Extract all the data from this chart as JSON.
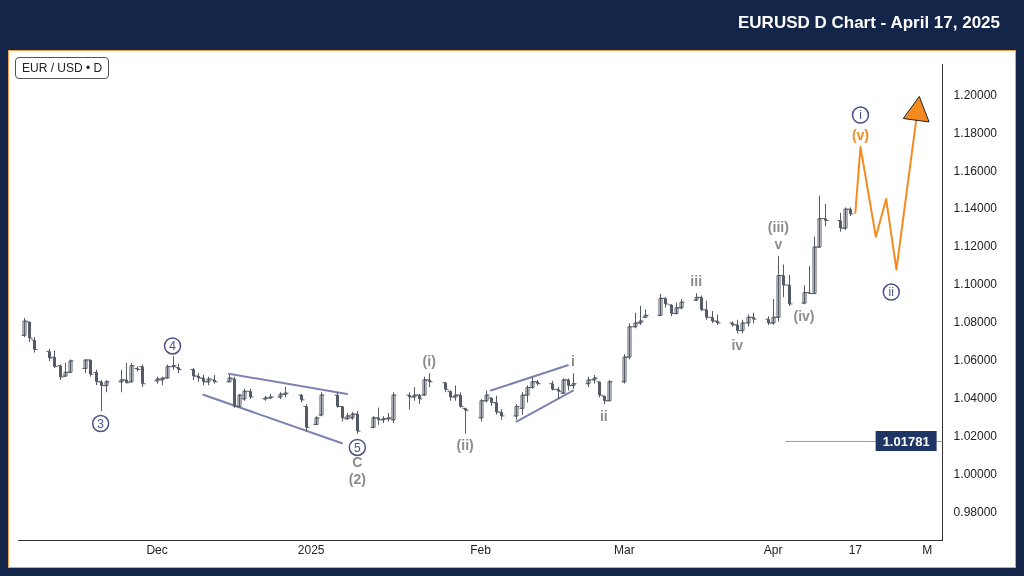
{
  "chart_data": {
    "type": "candlestick",
    "title": "EURUSD D Chart - April 17, 2025",
    "subtitle": "EUR / USD • D",
    "color": "#555b66",
    "x": [
      "2024-11-06",
      "2024-11-07",
      "2024-11-08",
      "2024-11-11",
      "2024-11-12",
      "2024-11-13",
      "2024-11-14",
      "2024-11-15",
      "2024-11-18",
      "2024-11-19",
      "2024-11-20",
      "2024-11-21",
      "2024-11-22",
      "2024-11-25",
      "2024-11-26",
      "2024-11-27",
      "2024-11-28",
      "2024-11-29",
      "2024-12-02",
      "2024-12-03",
      "2024-12-04",
      "2024-12-05",
      "2024-12-06",
      "2024-12-09",
      "2024-12-10",
      "2024-12-11",
      "2024-12-12",
      "2024-12-13",
      "2024-12-16",
      "2024-12-17",
      "2024-12-18",
      "2024-12-19",
      "2024-12-20",
      "2024-12-23",
      "2024-12-24",
      "2024-12-26",
      "2024-12-27",
      "2024-12-30",
      "2024-12-31",
      "2025-01-02",
      "2025-01-03",
      "2025-01-06",
      "2025-01-07",
      "2025-01-08",
      "2025-01-09",
      "2025-01-10",
      "2025-01-13",
      "2025-01-14",
      "2025-01-15",
      "2025-01-16",
      "2025-01-17",
      "2025-01-20",
      "2025-01-21",
      "2025-01-22",
      "2025-01-23",
      "2025-01-24",
      "2025-01-27",
      "2025-01-28",
      "2025-01-29",
      "2025-01-30",
      "2025-01-31",
      "2025-02-03",
      "2025-02-04",
      "2025-02-05",
      "2025-02-06",
      "2025-02-07",
      "2025-02-10",
      "2025-02-11",
      "2025-02-12",
      "2025-02-13",
      "2025-02-14",
      "2025-02-17",
      "2025-02-18",
      "2025-02-19",
      "2025-02-20",
      "2025-02-21",
      "2025-02-24",
      "2025-02-25",
      "2025-02-26",
      "2025-02-27",
      "2025-02-28",
      "2025-03-03",
      "2025-03-04",
      "2025-03-05",
      "2025-03-06",
      "2025-03-07",
      "2025-03-10",
      "2025-03-11",
      "2025-03-12",
      "2025-03-13",
      "2025-03-14",
      "2025-03-17",
      "2025-03-18",
      "2025-03-19",
      "2025-03-20",
      "2025-03-21",
      "2025-03-24",
      "2025-03-25",
      "2025-03-26",
      "2025-03-27",
      "2025-03-28",
      "2025-03-31",
      "2025-04-01",
      "2025-04-02",
      "2025-04-03",
      "2025-04-04",
      "2025-04-07",
      "2025-04-08",
      "2025-04-09",
      "2025-04-10",
      "2025-04-11",
      "2025-04-14",
      "2025-04-15",
      "2025-04-16"
    ],
    "ohlc": [
      [
        1.0735,
        1.0826,
        1.0726,
        1.081
      ],
      [
        1.0805,
        1.0808,
        1.0699,
        1.072
      ],
      [
        1.071,
        1.0726,
        1.0644,
        1.066
      ],
      [
        1.065,
        1.0663,
        1.0599,
        1.0615
      ],
      [
        1.062,
        1.0654,
        1.0562,
        1.057
      ],
      [
        1.0575,
        1.0581,
        1.0499,
        1.0515
      ],
      [
        1.052,
        1.059,
        1.0515,
        1.054
      ],
      [
        1.054,
        1.0608,
        1.0535,
        1.06
      ],
      [
        1.056,
        1.0608,
        1.0535,
        1.0605
      ],
      [
        1.0605,
        1.0608,
        1.0517,
        1.053
      ],
      [
        1.054,
        1.0553,
        1.0472,
        1.049
      ],
      [
        1.049,
        1.0499,
        1.0335,
        1.047
      ],
      [
        1.047,
        1.0499,
        1.0435,
        1.049
      ],
      [
        1.049,
        1.0553,
        1.0435,
        1.05
      ],
      [
        1.05,
        1.059,
        1.0481,
        1.0485
      ],
      [
        1.049,
        1.059,
        1.0485,
        1.0575
      ],
      [
        1.056,
        1.0572,
        1.0544,
        1.0555
      ],
      [
        1.057,
        1.0581,
        1.0463,
        1.048
      ],
      [
        1.0495,
        1.0517,
        1.048,
        1.0505
      ],
      [
        1.05,
        1.0517,
        1.0472,
        1.051
      ],
      [
        1.051,
        1.0581,
        1.0508,
        1.057
      ],
      [
        1.057,
        1.0626,
        1.0553,
        1.0575
      ],
      [
        1.0565,
        1.0585,
        1.0535,
        1.0555
      ],
      [
        1.0555,
        1.0563,
        1.0499,
        1.052
      ],
      [
        1.052,
        1.0535,
        1.049,
        1.051
      ],
      [
        1.051,
        1.0526,
        1.0472,
        1.049
      ],
      [
        1.049,
        1.0517,
        1.0472,
        1.0505
      ],
      [
        1.05,
        1.0526,
        1.0481,
        1.049
      ],
      [
        1.049,
        1.0526,
        1.0488,
        1.051
      ],
      [
        1.0505,
        1.0517,
        1.0353,
        1.036
      ],
      [
        1.036,
        1.0426,
        1.0353,
        1.042
      ],
      [
        1.04,
        1.0453,
        1.039,
        1.044
      ],
      [
        1.044,
        1.0453,
        1.0399,
        1.041
      ],
      [
        1.04,
        1.0417,
        1.039,
        1.0405
      ],
      [
        1.0405,
        1.0426,
        1.0399,
        1.041
      ],
      [
        1.041,
        1.0435,
        1.0399,
        1.0425
      ],
      [
        1.0425,
        1.0463,
        1.0408,
        1.043
      ],
      [
        1.042,
        1.0426,
        1.0381,
        1.0395
      ],
      [
        1.036,
        1.0372,
        1.0226,
        1.025
      ],
      [
        1.0265,
        1.0308,
        1.0262,
        1.03
      ],
      [
        1.0315,
        1.0435,
        1.0308,
        1.042
      ],
      [
        1.042,
        1.0435,
        1.0353,
        1.036
      ],
      [
        1.036,
        1.0362,
        1.0281,
        1.03
      ],
      [
        1.0295,
        1.0326,
        1.029,
        1.031
      ],
      [
        1.03,
        1.0331,
        1.029,
        1.032
      ],
      [
        1.032,
        1.0336,
        1.0217,
        1.023
      ],
      [
        1.025,
        1.0309,
        1.0245,
        1.03
      ],
      [
        1.03,
        1.0354,
        1.0263,
        1.029
      ],
      [
        1.029,
        1.0309,
        1.0272,
        1.0295
      ],
      [
        1.0295,
        1.0326,
        1.0281,
        1.03
      ],
      [
        1.029,
        1.0435,
        1.0272,
        1.042
      ],
      [
        1.042,
        1.0435,
        1.0344,
        1.041
      ],
      [
        1.041,
        1.0462,
        1.039,
        1.042
      ],
      [
        1.042,
        1.0426,
        1.0372,
        1.04
      ],
      [
        1.042,
        1.0517,
        1.0417,
        1.05
      ],
      [
        1.05,
        1.0535,
        1.0462,
        1.049
      ],
      [
        1.0485,
        1.049,
        1.0435,
        1.045
      ],
      [
        1.044,
        1.0444,
        1.039,
        1.041
      ],
      [
        1.041,
        1.0471,
        1.039,
        1.042
      ],
      [
        1.042,
        1.0435,
        1.0353,
        1.036
      ],
      [
        1.035,
        1.0353,
        1.0217,
        1.034
      ],
      [
        1.03,
        1.0399,
        1.0281,
        1.039
      ],
      [
        1.039,
        1.0444,
        1.0381,
        1.042
      ],
      [
        1.0405,
        1.0408,
        1.0363,
        1.038
      ],
      [
        1.038,
        1.0417,
        1.0317,
        1.033
      ],
      [
        1.033,
        1.0345,
        1.029,
        1.031
      ],
      [
        1.031,
        1.0372,
        1.029,
        1.036
      ],
      [
        1.035,
        1.0435,
        1.0317,
        1.042
      ],
      [
        1.042,
        1.0471,
        1.0381,
        1.046
      ],
      [
        1.046,
        1.0517,
        1.0453,
        1.049
      ],
      [
        1.049,
        1.0499,
        1.0471,
        1.048
      ],
      [
        1.048,
        1.0495,
        1.0444,
        1.045
      ],
      [
        1.045,
        1.0462,
        1.0399,
        1.044
      ],
      [
        1.043,
        1.0508,
        1.0426,
        1.05
      ],
      [
        1.05,
        1.0508,
        1.0444,
        1.047
      ],
      [
        1.047,
        1.0535,
        1.0453,
        1.048
      ],
      [
        1.048,
        1.0517,
        1.0462,
        1.05
      ],
      [
        1.05,
        1.0526,
        1.0481,
        1.051
      ],
      [
        1.049,
        1.049,
        1.0408,
        1.042
      ],
      [
        1.0415,
        1.0417,
        1.0372,
        1.039
      ],
      [
        1.039,
        1.0499,
        1.039,
        1.049
      ],
      [
        1.049,
        1.0635,
        1.0481,
        1.062
      ],
      [
        1.062,
        1.0799,
        1.0608,
        1.078
      ],
      [
        1.078,
        1.0854,
        1.0772,
        1.08
      ],
      [
        1.08,
        1.089,
        1.079,
        1.081
      ],
      [
        1.083,
        1.0872,
        1.0827,
        1.084
      ],
      [
        1.084,
        1.0954,
        1.0836,
        1.093
      ],
      [
        1.093,
        1.0936,
        1.0881,
        1.09
      ],
      [
        1.0895,
        1.0899,
        1.0836,
        1.085
      ],
      [
        1.085,
        1.0908,
        1.0845,
        1.088
      ],
      [
        1.088,
        1.0926,
        1.0872,
        1.091
      ],
      [
        1.092,
        1.0957,
        1.0917,
        1.0935
      ],
      [
        1.0935,
        1.0945,
        1.0863,
        1.087
      ],
      [
        1.087,
        1.0917,
        1.0817,
        1.083
      ],
      [
        1.083,
        1.0863,
        1.0799,
        1.081
      ],
      [
        1.081,
        1.0845,
        1.079,
        1.08
      ],
      [
        1.08,
        1.0808,
        1.0781,
        1.079
      ],
      [
        1.079,
        1.0817,
        1.0745,
        1.076
      ],
      [
        1.076,
        1.0817,
        1.0745,
        1.08
      ],
      [
        1.08,
        1.0845,
        1.0781,
        1.083
      ],
      [
        1.083,
        1.0854,
        1.0799,
        1.082
      ],
      [
        1.082,
        1.0835,
        1.079,
        1.08
      ],
      [
        1.08,
        1.0926,
        1.079,
        1.083
      ],
      [
        1.083,
        1.1154,
        1.0808,
        1.105
      ],
      [
        1.105,
        1.1108,
        1.0936,
        1.1
      ],
      [
        1.1,
        1.1054,
        1.089,
        1.09
      ],
      [
        1.0905,
        1.0999,
        1.0899,
        1.096
      ],
      [
        1.096,
        1.1099,
        1.0954,
        1.0955
      ],
      [
        1.0955,
        1.1254,
        1.0954,
        1.12
      ],
      [
        1.12,
        1.1472,
        1.1199,
        1.135
      ],
      [
        1.135,
        1.1427,
        1.1309,
        1.134
      ],
      [
        1.134,
        1.1381,
        1.1281,
        1.13
      ],
      [
        1.13,
        1.1409,
        1.129,
        1.14
      ],
      [
        1.14,
        1.1409,
        1.1364,
        1.1375
      ]
    ],
    "series": [
      {
        "type": "line",
        "color": "#7c83b0",
        "x": [
          "2024-12-16",
          "2025-01-08"
        ],
        "values": [
          1.0532,
          1.0426
        ]
      },
      {
        "type": "line",
        "color": "#7c83b0",
        "x": [
          "2024-12-11",
          "2025-01-07"
        ],
        "values": [
          1.0422,
          1.0166
        ]
      },
      {
        "type": "line",
        "color": "#7c83b0",
        "x": [
          "2025-02-05",
          "2025-02-20"
        ],
        "values": [
          1.0444,
          1.0577
        ]
      },
      {
        "type": "line",
        "color": "#7c83b0",
        "x": [
          "2025-02-10",
          "2025-02-21"
        ],
        "values": [
          1.028,
          1.0444
        ]
      },
      {
        "type": "line",
        "color": "#f58a1f",
        "x": [
          "2025-04-17",
          "2025-04-18",
          "2025-04-21",
          "2025-04-23",
          "2025-04-25",
          "2025-04-29"
        ],
        "values": [
          1.1381,
          1.1727,
          1.1254,
          1.1454,
          1.1081,
          1.19
        ]
      },
      {
        "type": "scatter",
        "color": "#4a5285",
        "marker": "circle",
        "x": [
          "2024-11-21",
          "2024-12-05",
          "2025-01-10",
          "2025-04-18",
          "2025-04-24"
        ],
        "values": [
          1.027,
          1.0679,
          1.0144,
          1.1896,
          1.0963
        ]
      }
    ],
    "annotations": [
      {
        "text": "3",
        "x": "2024-11-21",
        "y": 1.027
      },
      {
        "text": "4",
        "x": "2024-12-05",
        "y": 1.0679
      },
      {
        "text": "5",
        "x": "2025-01-10",
        "y": 1.0144
      },
      {
        "text": "i",
        "x": "2025-04-18",
        "y": 1.1896
      },
      {
        "text": "ii",
        "x": "2025-04-24",
        "y": 1.0963
      },
      {
        "text": "C",
        "x": "2025-01-10",
        "y": 1.0217
      },
      {
        "text": "(2)",
        "x": "2025-01-10",
        "y": 1.0217
      },
      {
        "text": "(i)",
        "x": "2025-01-24",
        "y": 1.0535
      },
      {
        "text": "(ii)",
        "x": "2025-01-31",
        "y": 1.0217
      },
      {
        "text": "i",
        "x": "2025-02-21",
        "y": 1.0535
      },
      {
        "text": "ii",
        "x": "2025-02-27",
        "y": 1.0372
      },
      {
        "text": "iii",
        "x": "2025-03-17",
        "y": 1.0957
      },
      {
        "text": "iv",
        "x": "2025-03-25",
        "y": 1.0745
      },
      {
        "text": "v",
        "x": "2025-04-02",
        "y": 1.1154
      },
      {
        "text": "(iii)",
        "x": "2025-04-02",
        "y": 1.1154
      },
      {
        "text": "(iv)",
        "x": "2025-04-07",
        "y": 1.0899
      },
      {
        "text": "(v)",
        "x": "2025-04-18",
        "y": 1.1727
      }
    ],
    "xlim": [
      "2024-11-05",
      "2025-05-04"
    ],
    "xticks": [
      {
        "value": "2024-12-02",
        "label": "Dec"
      },
      {
        "value": "2025-01-01",
        "label": "2025"
      },
      {
        "value": "2025-02-03",
        "label": "Feb"
      },
      {
        "value": "2025-03-03",
        "label": "Mar"
      },
      {
        "value": "2025-04-01",
        "label": "Apr"
      },
      {
        "value": "2025-04-17",
        "label": "17"
      },
      {
        "value": "2025-05-01",
        "label": "M"
      }
    ],
    "ylim": [
      0.9653,
      1.2164
    ],
    "yticks": [
      {
        "value": 0.98,
        "label": "0.98000"
      },
      {
        "value": 1.0,
        "label": "1.00000"
      },
      {
        "value": 1.02,
        "label": "1.02000"
      },
      {
        "value": 1.04,
        "label": "1.04000"
      },
      {
        "value": 1.06,
        "label": "1.06000"
      },
      {
        "value": 1.08,
        "label": "1.08000"
      },
      {
        "value": 1.1,
        "label": "1.10000"
      },
      {
        "value": 1.12,
        "label": "1.12000"
      },
      {
        "value": 1.14,
        "label": "1.14000"
      },
      {
        "value": 1.16,
        "label": "1.16000"
      },
      {
        "value": 1.18,
        "label": "1.18000"
      },
      {
        "value": 1.2,
        "label": "1.20000"
      }
    ],
    "ref_lines": [
      {
        "axis": "y",
        "value": 1.01781,
        "label": "1.01781",
        "color": "#f58a1f"
      }
    ],
    "grid": false,
    "legend": false
  }
}
